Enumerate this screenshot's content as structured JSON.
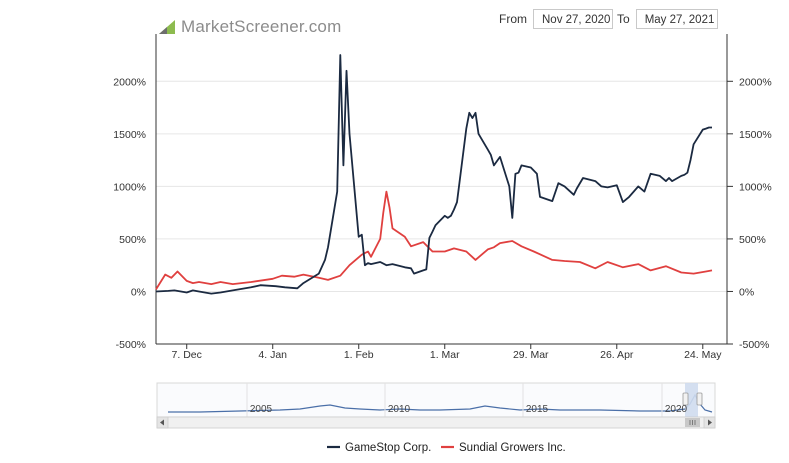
{
  "brand": {
    "name": "MarketScreener.com"
  },
  "date_range": {
    "from_label": "From",
    "from_value": "Nov 27, 2020",
    "to_label": "To",
    "to_value": "May 27, 2021"
  },
  "colors": {
    "gamestop": "#1b2a41",
    "sundial": "#e0403f",
    "axis": "#333333",
    "grid": "#e6e6e6",
    "navigator": "#4a6fa8"
  },
  "chart_data": {
    "type": "line",
    "title": "",
    "xlabel": "",
    "ylabel": "",
    "x_range": [
      "2020-11-27",
      "2021-05-27"
    ],
    "ylim": [
      -500,
      2450
    ],
    "y_ticks": [
      -500,
      0,
      500,
      1000,
      1500,
      2000
    ],
    "y_tick_labels": [
      "-500%",
      "0%",
      "500%",
      "1000%",
      "1500%",
      "2000%"
    ],
    "x_tick_labels": [
      {
        "date": "2020-12-07",
        "label": "7. Dec"
      },
      {
        "date": "2021-01-04",
        "label": "4. Jan"
      },
      {
        "date": "2021-02-01",
        "label": "1. Feb"
      },
      {
        "date": "2021-03-01",
        "label": "1. Mar"
      },
      {
        "date": "2021-03-29",
        "label": "29. Mar"
      },
      {
        "date": "2021-04-26",
        "label": "26. Apr"
      },
      {
        "date": "2021-05-24",
        "label": "24. May"
      }
    ],
    "legend_position": "bottom",
    "series": [
      {
        "name": "GameStop Corp.",
        "x": [
          "2020-11-27",
          "2020-12-01",
          "2020-12-03",
          "2020-12-07",
          "2020-12-09",
          "2020-12-11",
          "2020-12-15",
          "2020-12-18",
          "2020-12-22",
          "2020-12-28",
          "2020-12-31",
          "2021-01-05",
          "2021-01-08",
          "2021-01-12",
          "2021-01-14",
          "2021-01-19",
          "2021-01-21",
          "2021-01-22",
          "2021-01-25",
          "2021-01-26",
          "2021-01-27",
          "2021-01-28",
          "2021-01-29",
          "2021-02-01",
          "2021-02-02",
          "2021-02-03",
          "2021-02-04",
          "2021-02-05",
          "2021-02-08",
          "2021-02-10",
          "2021-02-12",
          "2021-02-16",
          "2021-02-18",
          "2021-02-19",
          "2021-02-22",
          "2021-02-23",
          "2021-02-24",
          "2021-02-25",
          "2021-02-26",
          "2021-03-01",
          "2021-03-02",
          "2021-03-03",
          "2021-03-04",
          "2021-03-05",
          "2021-03-08",
          "2021-03-09",
          "2021-03-10",
          "2021-03-11",
          "2021-03-12",
          "2021-03-15",
          "2021-03-16",
          "2021-03-17",
          "2021-03-19",
          "2021-03-22",
          "2021-03-23",
          "2021-03-24",
          "2021-03-25",
          "2021-03-26",
          "2021-03-29",
          "2021-03-31",
          "2021-04-01",
          "2021-04-05",
          "2021-04-07",
          "2021-04-09",
          "2021-04-12",
          "2021-04-13",
          "2021-04-15",
          "2021-04-19",
          "2021-04-21",
          "2021-04-23",
          "2021-04-26",
          "2021-04-28",
          "2021-04-30",
          "2021-05-03",
          "2021-05-05",
          "2021-05-07",
          "2021-05-10",
          "2021-05-12",
          "2021-05-13",
          "2021-05-14",
          "2021-05-17",
          "2021-05-18",
          "2021-05-19",
          "2021-05-20",
          "2021-05-21",
          "2021-05-24",
          "2021-05-25",
          "2021-05-26",
          "2021-05-27"
        ],
        "values": [
          0,
          5,
          10,
          -10,
          10,
          0,
          -20,
          -10,
          10,
          40,
          60,
          50,
          40,
          30,
          80,
          170,
          300,
          420,
          950,
          2250,
          1200,
          2100,
          1500,
          520,
          540,
          250,
          270,
          260,
          280,
          250,
          260,
          230,
          220,
          170,
          200,
          210,
          510,
          570,
          630,
          720,
          700,
          720,
          780,
          850,
          1550,
          1700,
          1650,
          1700,
          1500,
          1350,
          1300,
          1200,
          1280,
          1000,
          700,
          1120,
          1130,
          1200,
          1180,
          1120,
          900,
          860,
          1030,
          1000,
          920,
          980,
          1080,
          1050,
          1000,
          990,
          1010,
          850,
          900,
          1000,
          950,
          1120,
          1100,
          1050,
          1080,
          1050,
          1100,
          1110,
          1130,
          1250,
          1400,
          1540,
          1550,
          1560,
          1560
        ]
      },
      {
        "name": "Sundial Growers Inc.",
        "x": [
          "2020-11-27",
          "2020-11-30",
          "2020-12-02",
          "2020-12-04",
          "2020-12-07",
          "2020-12-09",
          "2020-12-11",
          "2020-12-15",
          "2020-12-18",
          "2020-12-22",
          "2020-12-28",
          "2021-01-04",
          "2021-01-07",
          "2021-01-11",
          "2021-01-14",
          "2021-01-19",
          "2021-01-22",
          "2021-01-26",
          "2021-01-29",
          "2021-02-02",
          "2021-02-04",
          "2021-02-05",
          "2021-02-08",
          "2021-02-09",
          "2021-02-10",
          "2021-02-11",
          "2021-02-12",
          "2021-02-16",
          "2021-02-18",
          "2021-02-22",
          "2021-02-25",
          "2021-03-01",
          "2021-03-04",
          "2021-03-08",
          "2021-03-11",
          "2021-03-15",
          "2021-03-17",
          "2021-03-19",
          "2021-03-23",
          "2021-03-26",
          "2021-03-30",
          "2021-04-05",
          "2021-04-09",
          "2021-04-14",
          "2021-04-19",
          "2021-04-23",
          "2021-04-28",
          "2021-05-03",
          "2021-05-07",
          "2021-05-12",
          "2021-05-17",
          "2021-05-21",
          "2021-05-25",
          "2021-05-27"
        ],
        "values": [
          20,
          160,
          130,
          190,
          100,
          80,
          90,
          70,
          90,
          70,
          90,
          120,
          150,
          140,
          160,
          130,
          110,
          150,
          250,
          350,
          380,
          330,
          500,
          750,
          950,
          800,
          600,
          520,
          430,
          470,
          380,
          380,
          410,
          380,
          300,
          400,
          420,
          460,
          480,
          430,
          380,
          300,
          290,
          280,
          220,
          280,
          230,
          260,
          200,
          240,
          180,
          170,
          190,
          200
        ]
      }
    ]
  },
  "navigator": {
    "year_labels": [
      "2005",
      "2010",
      "2015",
      "2020"
    ]
  },
  "legend": [
    {
      "label": "GameStop Corp."
    },
    {
      "label": "Sundial Growers Inc."
    }
  ]
}
